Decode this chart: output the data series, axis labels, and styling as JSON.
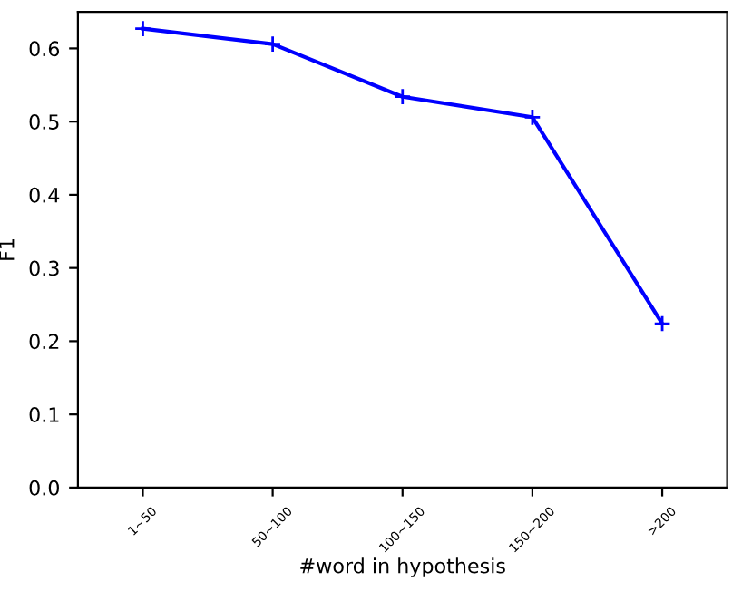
{
  "chart_data": {
    "type": "line",
    "xlabel": "#word in hypothesis",
    "ylabel": "F1",
    "categories": [
      "1~50",
      "50~100",
      "100~150",
      "150~200",
      ">200"
    ],
    "series": [
      {
        "color": "#0000ff",
        "values": [
          0.627,
          0.606,
          0.534,
          0.506,
          0.224
        ]
      }
    ],
    "ylim": [
      0,
      0.65
    ],
    "yticks": [
      {
        "value": 0,
        "label": "0.0"
      },
      0.1,
      0.2,
      0.3,
      0.4,
      0.5,
      0.6
    ],
    "marker": "cross",
    "line_style": "solid",
    "grid": false,
    "legend": false
  }
}
